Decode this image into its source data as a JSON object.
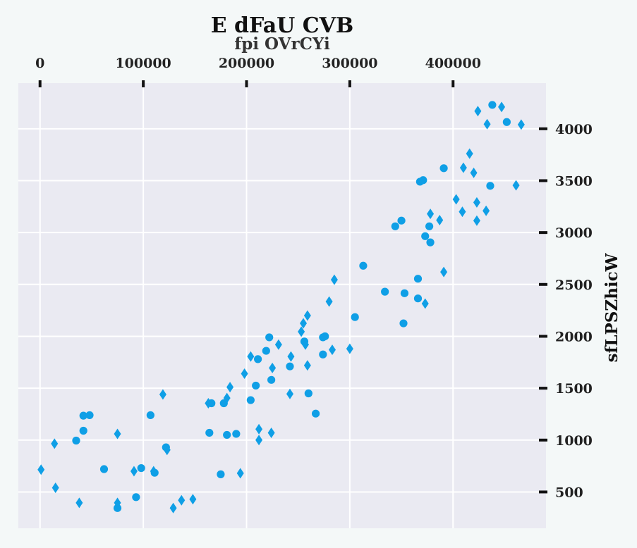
{
  "chart_data": {
    "type": "scatter",
    "title": "E dFaU CVB",
    "xlabel": "fpi OVrCYi",
    "ylabel": "sfLPSZhicW",
    "xlim": [
      -21000,
      490000
    ],
    "ylim": [
      150,
      4440
    ],
    "x_ticks": [
      0,
      100000,
      200000,
      300000,
      400000
    ],
    "y_ticks": [
      500,
      1000,
      1500,
      2000,
      2500,
      3000,
      3500,
      4000
    ],
    "x_axis_position": "top",
    "y_axis_position": "right",
    "grid": true,
    "colors": {
      "background": "#f4f8f8",
      "plot_area": "#eaeaf2",
      "grid": "#ffffff",
      "marker": "#0f9fe6"
    },
    "series": [
      {
        "marker": "circle",
        "x": [
          42000,
          48000,
          42000,
          35000,
          62000,
          75000,
          93000,
          98000,
          107000,
          111000,
          122000,
          164000,
          166000,
          175000,
          178000,
          181000,
          190000,
          204000,
          209000,
          211000,
          219000,
          222000,
          224000,
          242000,
          256000,
          260000,
          267000,
          274000,
          276000,
          274000,
          305000,
          313000,
          334000,
          344000,
          350000,
          352000,
          353000,
          366000,
          366000,
          368000,
          371000,
          373000,
          377000,
          378000,
          391000,
          436000,
          438000,
          452000
        ],
        "y": [
          1235,
          1240,
          1090,
          995,
          720,
          345,
          450,
          730,
          1240,
          685,
          930,
          1070,
          1355,
          670,
          1355,
          1050,
          1060,
          1385,
          1525,
          1780,
          1860,
          1990,
          1580,
          1710,
          1950,
          1450,
          1255,
          1825,
          2000,
          1990,
          2185,
          2680,
          2430,
          3060,
          3115,
          2125,
          2415,
          2555,
          2365,
          3490,
          3505,
          2965,
          3060,
          2905,
          3620,
          3450,
          4230,
          4065
        ]
      },
      {
        "marker": "diamond",
        "x": [
          1000,
          15000,
          14000,
          38000,
          75000,
          75000,
          91000,
          110000,
          119000,
          123000,
          129000,
          137000,
          148000,
          163000,
          181000,
          184000,
          194000,
          198000,
          204000,
          212000,
          212000,
          224000,
          225000,
          231000,
          242000,
          243000,
          253000,
          255000,
          257000,
          259000,
          259000,
          280000,
          283000,
          285000,
          300000,
          373000,
          378000,
          387000,
          391000,
          403000,
          409000,
          410000,
          416000,
          420000,
          423000,
          423000,
          424000,
          432000,
          433000,
          447000,
          461000,
          466000
        ],
        "y": [
          715,
          540,
          965,
          395,
          1060,
          395,
          700,
          700,
          1440,
          905,
          345,
          420,
          430,
          1355,
          1405,
          1510,
          680,
          1640,
          1805,
          1000,
          1105,
          1070,
          1695,
          1920,
          1445,
          1805,
          2045,
          2125,
          1920,
          2200,
          1720,
          2335,
          1870,
          2545,
          1880,
          2315,
          3180,
          3120,
          2620,
          3320,
          3200,
          3625,
          3760,
          3575,
          3290,
          3115,
          4170,
          3210,
          4045,
          4210,
          3455,
          4040
        ]
      }
    ]
  }
}
